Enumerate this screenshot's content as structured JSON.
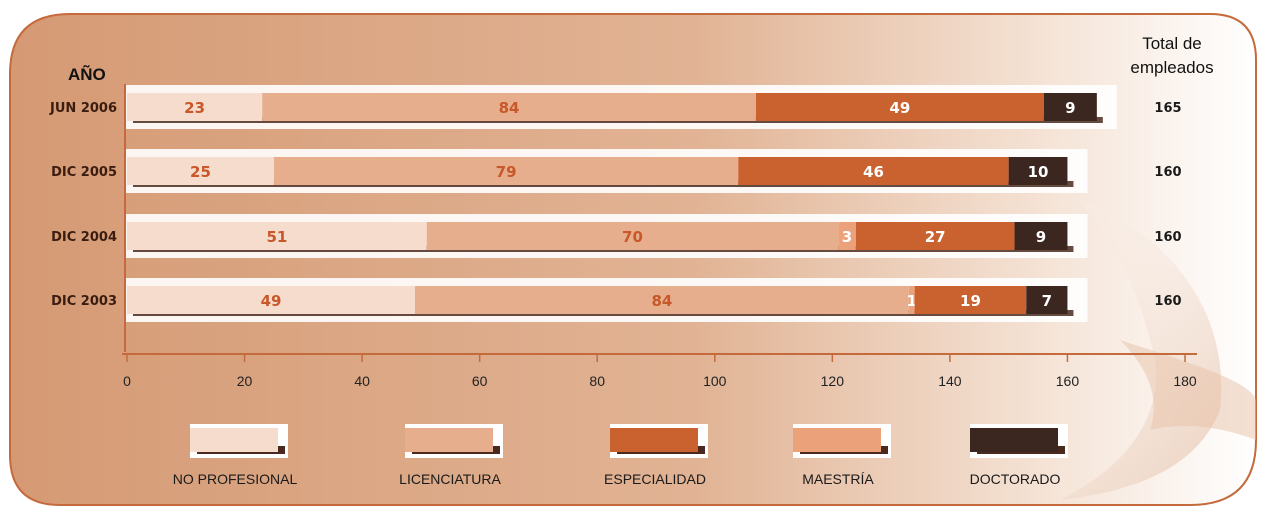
{
  "chart_data": {
    "type": "bar",
    "orientation": "horizontal",
    "stacked": true,
    "y_axis_title": "AÑO",
    "totals_title_line1": "Total de",
    "totals_title_line2": "empleados",
    "categories": [
      "JUN 2006",
      "DIC 2005",
      "DIC 2004",
      "DIC 2003"
    ],
    "totals": [
      "165",
      "160",
      "160",
      "160"
    ],
    "series": [
      {
        "name": "NO PROFESIONAL",
        "values": [
          23,
          25,
          51,
          49
        ],
        "labels": [
          "23",
          "25",
          "51",
          "49"
        ],
        "color": "#f6dccd",
        "label_color": "#c8582a"
      },
      {
        "name": "LICENCIATURA",
        "values": [
          84,
          79,
          70,
          84
        ],
        "labels": [
          "84",
          "79",
          "70",
          "84"
        ],
        "color": "#e7ae8e",
        "label_color": "#c8582a"
      },
      {
        "name": "MAESTRÍA",
        "values": [
          0,
          0,
          3,
          1
        ],
        "labels": [
          "",
          "",
          "3",
          "1"
        ],
        "color": "#eba27a",
        "label_color": "#ffffff"
      },
      {
        "name": "ESPECIALIDAD",
        "values": [
          49,
          46,
          27,
          19
        ],
        "labels": [
          "49",
          "46",
          "27",
          "19"
        ],
        "color": "#c9622f",
        "label_color": "#ffffff"
      },
      {
        "name": "DOCTORADO",
        "values": [
          9,
          10,
          9,
          7
        ],
        "labels": [
          "9",
          "10",
          "9",
          "7"
        ],
        "color": "#3b2620",
        "label_color": "#ffffff"
      }
    ],
    "legend_order": [
      "NO PROFESIONAL",
      "LICENCIATURA",
      "ESPECIALIDAD",
      "MAESTRÍA",
      "DOCTORADO"
    ],
    "xlim": [
      0,
      180
    ],
    "x_ticks": [
      0,
      20,
      40,
      60,
      80,
      100,
      120,
      140,
      160,
      180
    ],
    "x_tick_labels": [
      "0",
      "20",
      "40",
      "60",
      "80",
      "100",
      "120",
      "140",
      "160",
      "180"
    ],
    "legend_position": "bottom",
    "grid": false,
    "colors": {
      "panel_light": "#f5e0d1",
      "panel_dark": "#d99a74",
      "border": "#c56a3c",
      "axis": "#c56a3c"
    }
  }
}
